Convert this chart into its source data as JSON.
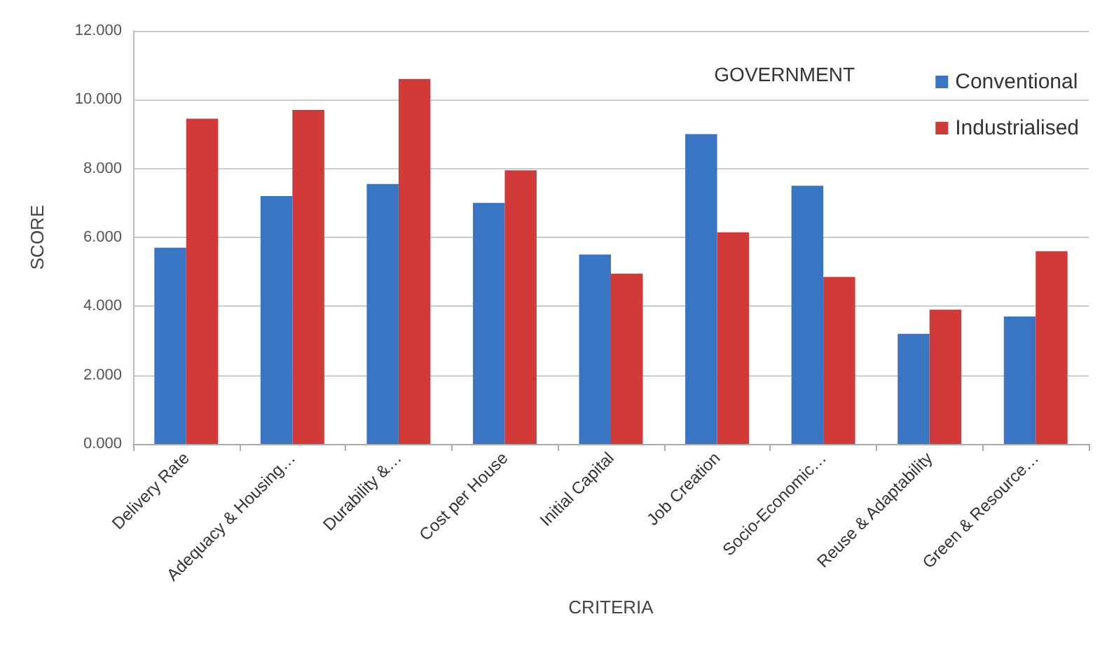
{
  "chart_data": {
    "type": "bar",
    "xlabel": "CRITERIA",
    "ylabel": "SCORE",
    "annotations": [
      "GOVERNMENT"
    ],
    "categories": [
      "Delivery Rate",
      "Adequacy & Housing…",
      "Durability &…",
      "Cost per House",
      "Initial Capital",
      "Job Creation",
      "Socio-Economic…",
      "Reuse & Adaptability",
      "Green & Resource…"
    ],
    "series": [
      {
        "name": "Conventional",
        "color": "#3a75c4",
        "values": [
          5.7,
          7.2,
          7.55,
          7.0,
          5.5,
          9.0,
          7.5,
          3.2,
          3.7
        ]
      },
      {
        "name": "Industrialised",
        "color": "#d23a3a",
        "values": [
          9.45,
          9.7,
          10.6,
          7.95,
          4.95,
          6.15,
          4.85,
          3.9,
          5.6
        ]
      }
    ],
    "ylim": [
      0,
      12
    ],
    "yticks": [
      {
        "value": 0,
        "label": "0.000"
      },
      {
        "value": 2,
        "label": "2.000"
      },
      {
        "value": 4,
        "label": "4.000"
      },
      {
        "value": 6,
        "label": "6.000"
      },
      {
        "value": 8,
        "label": "8.000"
      },
      {
        "value": 10,
        "label": "10.000"
      },
      {
        "value": 12,
        "label": "12.000"
      }
    ],
    "grid": "y",
    "legend": "top right"
  }
}
